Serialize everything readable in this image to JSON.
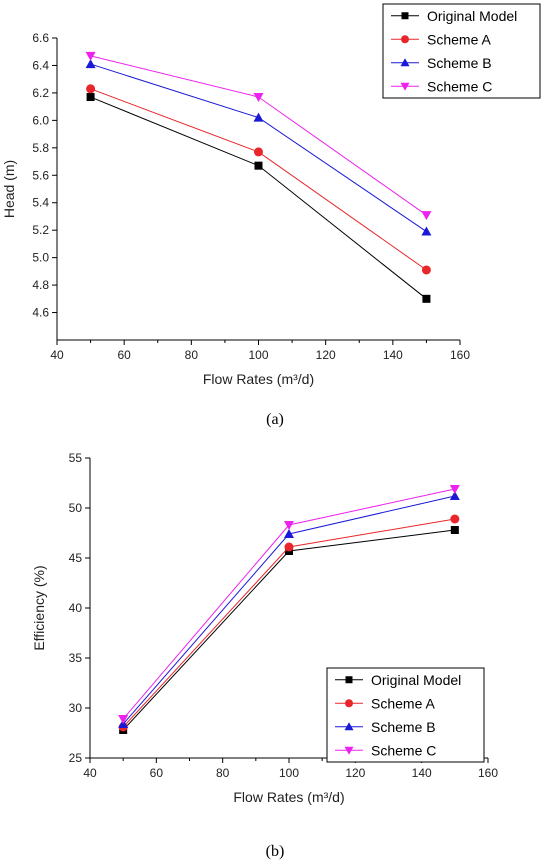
{
  "chart_data": [
    {
      "type": "line",
      "panel_label": "(a)",
      "xlabel": "Flow Rates (m³/d)",
      "ylabel": "Head (m)",
      "xlim": [
        40,
        160
      ],
      "ylim": [
        4.4,
        6.6
      ],
      "xticks": [
        40,
        60,
        80,
        100,
        120,
        140,
        160
      ],
      "yticks": [
        4.6,
        4.8,
        5.0,
        5.2,
        5.4,
        5.6,
        5.8,
        6.0,
        6.2,
        6.4,
        6.6
      ],
      "ytick_decimals": 1,
      "grid": false,
      "legend_position": "top-right",
      "x": [
        50,
        100,
        150
      ],
      "series": [
        {
          "name": "Original Model",
          "values": [
            6.17,
            5.67,
            4.7
          ],
          "color": "#000000",
          "marker": "square"
        },
        {
          "name": "Scheme A",
          "values": [
            6.23,
            5.77,
            4.91
          ],
          "color": "#e8262b",
          "marker": "circle"
        },
        {
          "name": "Scheme B",
          "values": [
            6.41,
            6.02,
            5.19
          ],
          "color": "#1a1ad6",
          "marker": "triangle-up"
        },
        {
          "name": "Scheme C",
          "values": [
            6.47,
            6.17,
            5.31
          ],
          "color": "#ee22ee",
          "marker": "triangle-down"
        }
      ]
    },
    {
      "type": "line",
      "panel_label": "(b)",
      "xlabel": "Flow Rates (m³/d)",
      "ylabel": "Efficiency (%)",
      "xlim": [
        40,
        160
      ],
      "ylim": [
        25,
        55
      ],
      "xticks": [
        40,
        60,
        80,
        100,
        120,
        140,
        160
      ],
      "yticks": [
        25,
        30,
        35,
        40,
        45,
        50,
        55
      ],
      "ytick_decimals": 0,
      "grid": false,
      "legend_position": "bottom-right",
      "x": [
        50,
        100,
        150
      ],
      "series": [
        {
          "name": "Original Model",
          "values": [
            27.8,
            45.7,
            47.8
          ],
          "color": "#000000",
          "marker": "square"
        },
        {
          "name": "Scheme A",
          "values": [
            28.1,
            46.1,
            48.9
          ],
          "color": "#e8262b",
          "marker": "circle"
        },
        {
          "name": "Scheme B",
          "values": [
            28.4,
            47.4,
            51.2
          ],
          "color": "#1a1ad6",
          "marker": "triangle-up"
        },
        {
          "name": "Scheme C",
          "values": [
            28.9,
            48.3,
            51.9
          ],
          "color": "#ee22ee",
          "marker": "triangle-down"
        }
      ]
    }
  ]
}
